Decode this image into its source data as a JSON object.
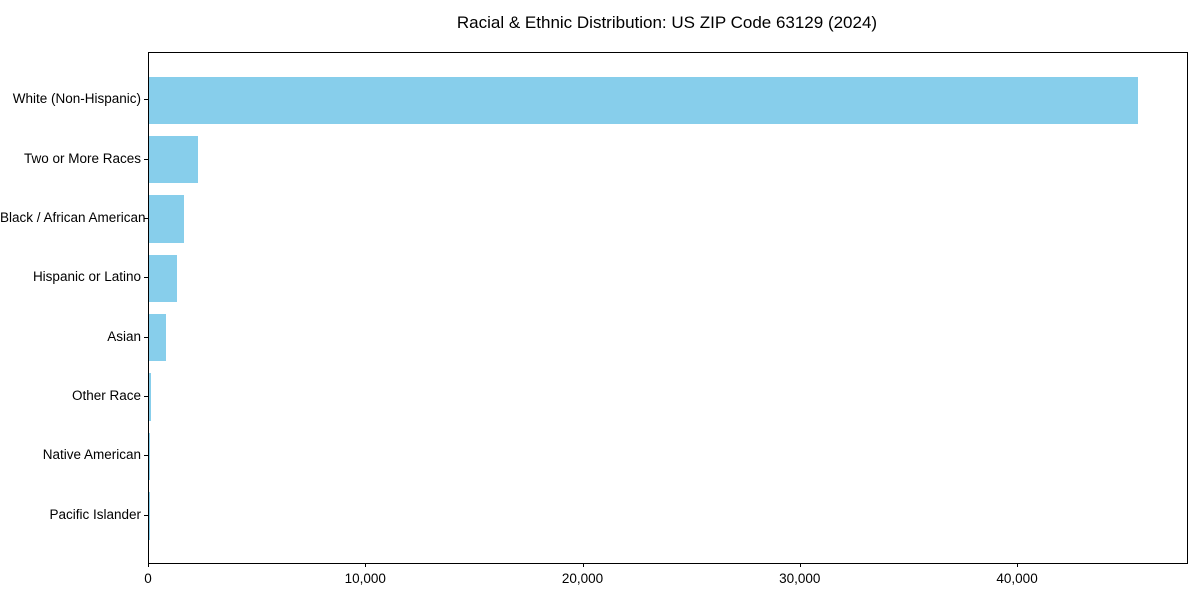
{
  "chart_data": {
    "type": "bar",
    "orientation": "horizontal",
    "title": "Racial & Ethnic Distribution: US ZIP Code 63129 (2024)",
    "categories": [
      "White (Non-Hispanic)",
      "Two or More Races",
      "Black / African American",
      "Hispanic or Latino",
      "Asian",
      "Other Race",
      "Native American",
      "Pacific Islander"
    ],
    "values": [
      45500,
      2250,
      1600,
      1280,
      800,
      70,
      25,
      10
    ],
    "xlabel": "",
    "ylabel": "",
    "xticks": [
      0,
      10000,
      20000,
      30000,
      40000
    ],
    "xtick_labels": [
      "0",
      "10,000",
      "20,000",
      "30,000",
      "40,000"
    ],
    "xlim": [
      0,
      47775
    ],
    "bar_color": "#87CEEB",
    "axis_color": "#000000",
    "text_color": "#000000",
    "background_color": "#ffffff",
    "grid": false,
    "legend": null,
    "value_labels_shown": false
  }
}
